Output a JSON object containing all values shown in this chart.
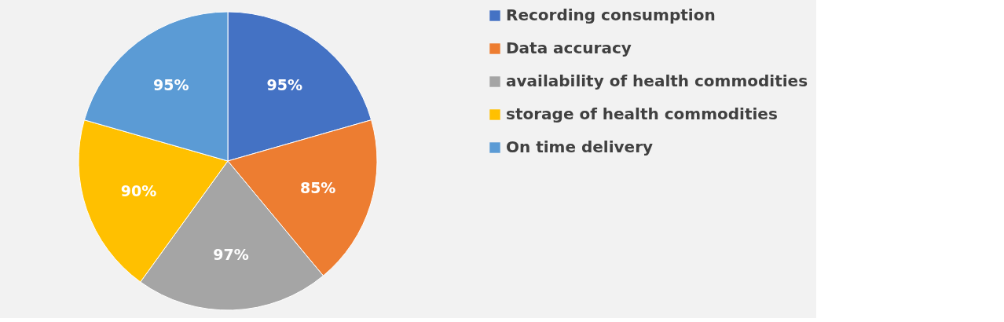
{
  "chart_data": {
    "type": "pie",
    "categories": [
      "Recording consumption",
      "Data accuracy",
      "availability of health commodities",
      "storage of health commodities",
      "On time delivery"
    ],
    "values": [
      95,
      85,
      97,
      90,
      95
    ],
    "colors": [
      "#4472c4",
      "#ed7d31",
      "#a5a5a5",
      "#ffc000",
      "#5b9bd5"
    ],
    "value_labels": [
      "95%",
      "85%",
      "97%",
      "90%",
      "95%"
    ],
    "legend": "right"
  }
}
